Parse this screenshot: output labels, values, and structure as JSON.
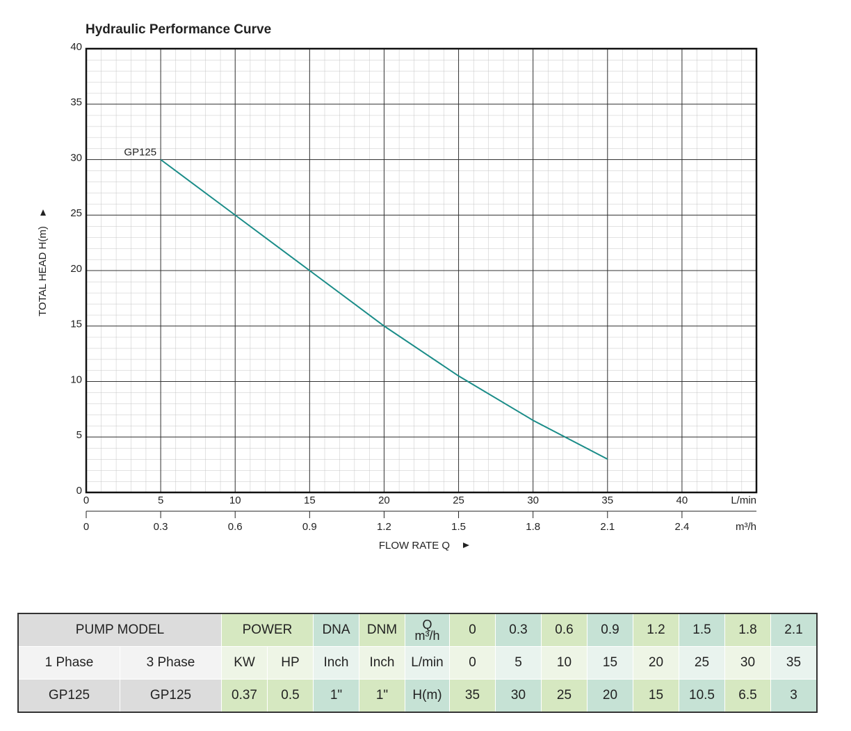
{
  "chart_data": {
    "type": "line",
    "title": "Hydraulic Performance Curve",
    "x": [
      5,
      10,
      15,
      20,
      25,
      30,
      35
    ],
    "series": [
      {
        "name": "GP125",
        "color": "#1a8c88",
        "values": [
          30,
          25,
          20,
          15,
          10.5,
          6.5,
          3
        ]
      }
    ],
    "xlim": [
      0,
      45
    ],
    "xticks": [
      0,
      5,
      10,
      15,
      20,
      25,
      30,
      35,
      40
    ],
    "x2lim": [
      0,
      2.7
    ],
    "x2ticks": [
      0,
      0.3,
      0.6,
      0.9,
      1.2,
      1.5,
      1.8,
      2.1,
      2.4
    ],
    "ylim": [
      0,
      40
    ],
    "yticks": [
      0,
      5,
      10,
      15,
      20,
      25,
      30,
      35,
      40
    ],
    "x_unit": "L/min",
    "x2_unit": "m³/h",
    "xlabel": "FLOW RATE Q",
    "ylabel": "TOTAL HEAD H(m)",
    "grid": true
  },
  "table": {
    "rows": [
      [
        "PUMP MODEL",
        "POWER",
        "DNA",
        "DNM",
        {
          "symbol": "Q",
          "unit": "m³/h"
        },
        0,
        0.3,
        0.6,
        0.9,
        1.2,
        1.5,
        1.8,
        2.1
      ],
      [
        "1 Phase",
        "3 Phase",
        "KW",
        "HP",
        "Inch",
        "Inch",
        "L/min",
        0,
        5,
        10,
        15,
        20,
        25,
        30,
        35
      ],
      [
        "GP125",
        "GP125",
        0.37,
        0.5,
        "1\"",
        "1\"",
        "H(m)",
        35,
        30,
        25,
        20,
        15,
        10.5,
        6.5,
        3
      ]
    ]
  }
}
